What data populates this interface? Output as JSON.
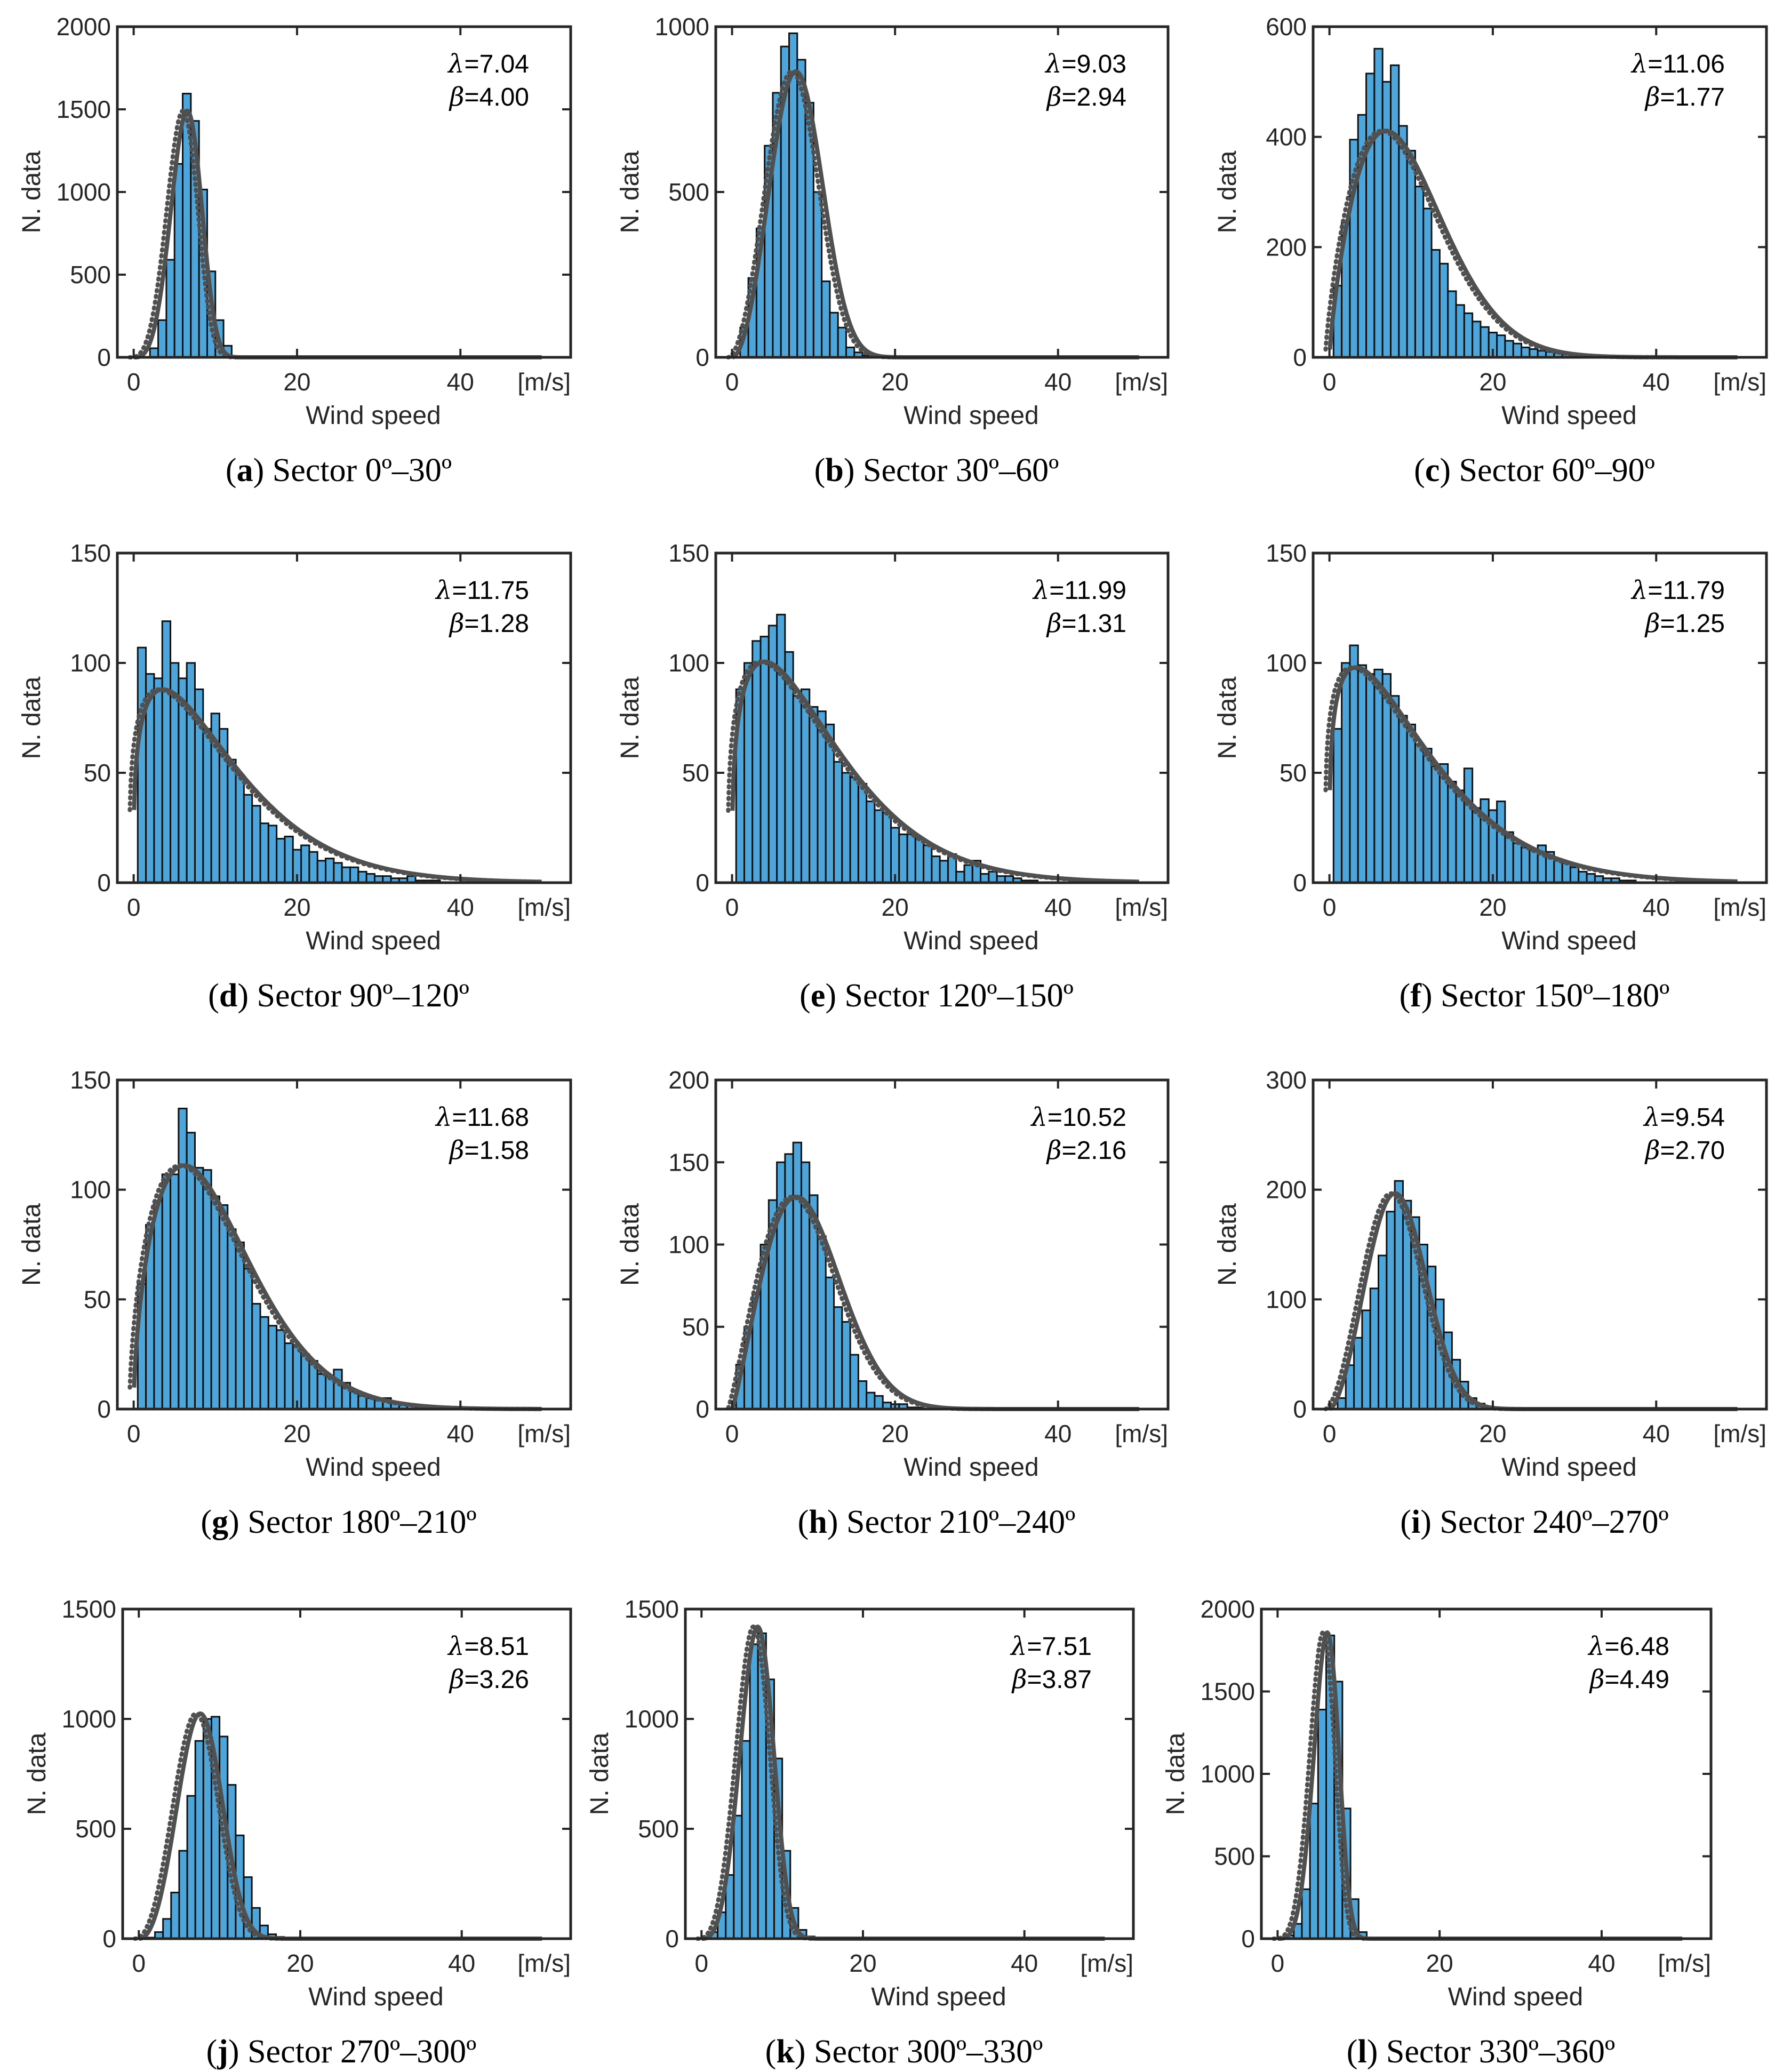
{
  "chart_data": [
    {
      "type": "bar",
      "panel": "a",
      "caption": "Sector 0º–30º",
      "lambda_label": "λ",
      "lambda": "7.04",
      "beta_label": "β",
      "beta": "4.00",
      "xlabel": "Wind speed",
      "xunit": "[m/s]",
      "ylabel": "N. data",
      "xlim": [
        -2,
        53.5
      ],
      "ylim": [
        0,
        2000
      ],
      "xticks": [
        "0",
        "20",
        "40"
      ],
      "yticks": [
        "0",
        "500",
        "1000",
        "1500",
        "2000"
      ],
      "bin_start": 2,
      "bin_width": 1,
      "values": [
        55,
        225,
        590,
        1170,
        1595,
        1430,
        1015,
        520,
        225,
        70
      ]
    },
    {
      "type": "bar",
      "panel": "b",
      "caption": "Sector 30º–60º",
      "lambda_label": "λ",
      "lambda": "9.03",
      "beta_label": "β",
      "beta": "2.94",
      "xlabel": "Wind speed",
      "xunit": "[m/s]",
      "ylabel": "N. data",
      "xlim": [
        -2,
        53.5
      ],
      "ylim": [
        0,
        1000
      ],
      "xticks": [
        "0",
        "20",
        "40"
      ],
      "yticks": [
        "0",
        "500",
        "1000"
      ],
      "bin_start": 1,
      "bin_width": 1,
      "values": [
        90,
        240,
        390,
        640,
        800,
        940,
        980,
        900,
        770,
        500,
        230,
        135,
        90,
        30,
        15,
        6,
        3
      ]
    },
    {
      "type": "bar",
      "panel": "c",
      "caption": "Sector 60º–90º",
      "lambda_label": "λ",
      "lambda": "11.06",
      "beta_label": "β",
      "beta": "1.77",
      "xlabel": "Wind speed",
      "xunit": "[m/s]",
      "ylabel": "N. data",
      "xlim": [
        -2,
        53.5
      ],
      "ylim": [
        0,
        600
      ],
      "xticks": [
        "0",
        "20",
        "40"
      ],
      "yticks": [
        "0",
        "200",
        "400",
        "600"
      ],
      "bin_start": 0.5,
      "bin_width": 1,
      "values": [
        130,
        245,
        395,
        440,
        515,
        560,
        500,
        530,
        420,
        375,
        310,
        270,
        195,
        170,
        120,
        95,
        80,
        65,
        55,
        45,
        40,
        30,
        25,
        18,
        15,
        12,
        10,
        8,
        6,
        5,
        4,
        3,
        2,
        2,
        1,
        1,
        1
      ]
    },
    {
      "type": "bar",
      "panel": "d",
      "caption": "Sector 90º–120º",
      "lambda_label": "λ",
      "lambda": "11.75",
      "beta_label": "β",
      "beta": "1.28",
      "xlabel": "Wind speed",
      "xunit": "[m/s]",
      "ylabel": "N. data",
      "xlim": [
        -2,
        53.5
      ],
      "ylim": [
        0,
        150
      ],
      "xticks": [
        "0",
        "20",
        "40"
      ],
      "yticks": [
        "0",
        "50",
        "100",
        "150"
      ],
      "bin_start": 0.5,
      "bin_width": 1,
      "values": [
        107,
        95,
        93,
        119,
        100,
        93,
        100,
        88,
        70,
        77,
        70,
        56,
        49,
        40,
        35,
        27,
        26,
        20,
        21,
        15,
        17,
        14,
        10,
        11,
        9,
        7,
        7,
        5,
        4,
        3,
        3,
        2,
        2,
        3,
        1,
        1,
        1
      ]
    },
    {
      "type": "bar",
      "panel": "e",
      "caption": "Sector 120º–150º",
      "lambda_label": "λ",
      "lambda": "11.99",
      "beta_label": "β",
      "beta": "1.31",
      "xlabel": "Wind speed",
      "xunit": "[m/s]",
      "ylabel": "N. data",
      "xlim": [
        -2,
        53.5
      ],
      "ylim": [
        0,
        150
      ],
      "xticks": [
        "0",
        "20",
        "40"
      ],
      "yticks": [
        "0",
        "50",
        "100",
        "150"
      ],
      "bin_start": 0.5,
      "bin_width": 1,
      "values": [
        88,
        100,
        110,
        112,
        117,
        122,
        105,
        85,
        88,
        80,
        78,
        72,
        55,
        50,
        48,
        45,
        37,
        33,
        32,
        25,
        22,
        22,
        20,
        17,
        12,
        10,
        13,
        5,
        8,
        10,
        4,
        5,
        3,
        3,
        2,
        1,
        1
      ]
    },
    {
      "type": "bar",
      "panel": "f",
      "caption": "Sector 150º–180º",
      "lambda_label": "λ",
      "lambda": "11.79",
      "beta_label": "β",
      "beta": "1.25",
      "xlabel": "Wind speed",
      "xunit": "[m/s]",
      "ylabel": "N. data",
      "xlim": [
        -2,
        53.5
      ],
      "ylim": [
        0,
        150
      ],
      "xticks": [
        "0",
        "20",
        "40"
      ],
      "yticks": [
        "0",
        "50",
        "100",
        "150"
      ],
      "bin_start": 0.5,
      "bin_width": 1,
      "values": [
        70,
        100,
        108,
        99,
        95,
        97,
        95,
        85,
        76,
        72,
        63,
        61,
        53,
        54,
        46,
        42,
        52,
        34,
        38,
        33,
        37,
        23,
        18,
        16,
        15,
        17,
        14,
        10,
        9,
        7,
        5,
        4,
        3,
        2,
        2,
        1,
        1
      ]
    },
    {
      "type": "bar",
      "panel": "g",
      "caption": "Sector 180º–210º",
      "lambda_label": "λ",
      "lambda": "11.68",
      "beta_label": "β",
      "beta": "1.58",
      "xlabel": "Wind speed",
      "xunit": "[m/s]",
      "ylabel": "N. data",
      "xlim": [
        -2,
        53.5
      ],
      "ylim": [
        0,
        150
      ],
      "xticks": [
        "0",
        "20",
        "40"
      ],
      "yticks": [
        "0",
        "50",
        "100",
        "150"
      ],
      "bin_start": 0.5,
      "bin_width": 1,
      "values": [
        57,
        84,
        95,
        107,
        107,
        137,
        126,
        110,
        109,
        97,
        93,
        82,
        76,
        64,
        48,
        42,
        38,
        36,
        30,
        29,
        25,
        22,
        16,
        15,
        18,
        12,
        8,
        6,
        5,
        4,
        5,
        3,
        2,
        2,
        1,
        1
      ]
    },
    {
      "type": "bar",
      "panel": "h",
      "caption": "Sector 210º–240º",
      "lambda_label": "λ",
      "lambda": "10.52",
      "beta_label": "β",
      "beta": "2.16",
      "xlabel": "Wind speed",
      "xunit": "[m/s]",
      "ylabel": "N. data",
      "xlim": [
        -2,
        53.5
      ],
      "ylim": [
        0,
        200
      ],
      "xticks": [
        "0",
        "20",
        "40"
      ],
      "yticks": [
        "0",
        "50",
        "100",
        "150",
        "200"
      ],
      "bin_start": 0.5,
      "bin_width": 1,
      "values": [
        27,
        50,
        70,
        100,
        127,
        150,
        155,
        162,
        150,
        130,
        105,
        80,
        62,
        53,
        33,
        17,
        10,
        8,
        4,
        3,
        3,
        1,
        1
      ]
    },
    {
      "type": "bar",
      "panel": "i",
      "caption": "Sector 240º–270º",
      "lambda_label": "λ",
      "lambda": "9.54",
      "beta_label": "β",
      "beta": "2.70",
      "xlabel": "Wind speed",
      "xunit": "[m/s]",
      "ylabel": "N. data",
      "xlim": [
        -2,
        53.5
      ],
      "ylim": [
        0,
        300
      ],
      "xticks": [
        "0",
        "20",
        "40"
      ],
      "yticks": [
        "0",
        "100",
        "200",
        "300"
      ],
      "bin_start": 1,
      "bin_width": 1,
      "values": [
        10,
        40,
        65,
        90,
        110,
        140,
        180,
        208,
        190,
        175,
        150,
        130,
        100,
        70,
        45,
        25,
        10,
        5,
        2
      ]
    },
    {
      "type": "bar",
      "panel": "j",
      "caption": "Sector 270º–300º",
      "lambda_label": "λ",
      "lambda": "8.51",
      "beta_label": "β",
      "beta": "3.26",
      "xlabel": "Wind speed",
      "xunit": "[m/s]",
      "ylabel": "N. data",
      "xlim": [
        -2,
        53.5
      ],
      "ylim": [
        0,
        1500
      ],
      "xticks": [
        "0",
        "20",
        "40"
      ],
      "yticks": [
        "0",
        "500",
        "1000",
        "1500"
      ],
      "bin_start": 1,
      "bin_width": 1,
      "values": [
        5,
        30,
        90,
        210,
        400,
        650,
        900,
        1000,
        1010,
        920,
        700,
        470,
        280,
        140,
        60,
        20,
        8,
        3
      ]
    },
    {
      "type": "bar",
      "panel": "k",
      "caption": "Sector 300º–330º",
      "lambda_label": "λ",
      "lambda": "7.51",
      "beta_label": "β",
      "beta": "3.87",
      "xlabel": "Wind speed",
      "xunit": "[m/s]",
      "ylabel": "N. data",
      "xlim": [
        -2,
        53.5
      ],
      "ylim": [
        0,
        1500
      ],
      "xticks": [
        "0",
        "20",
        "40"
      ],
      "yticks": [
        "0",
        "500",
        "1000",
        "1500"
      ],
      "bin_start": 1,
      "bin_width": 1,
      "values": [
        30,
        120,
        290,
        560,
        900,
        1340,
        1390,
        1180,
        820,
        400,
        140,
        40,
        10
      ]
    },
    {
      "type": "bar",
      "panel": "l",
      "caption": "Sector 330º–360º",
      "lambda_label": "λ",
      "lambda": "6.48",
      "beta_label": "β",
      "beta": "4.49",
      "xlabel": "Wind speed",
      "xunit": "[m/s]",
      "ylabel": "N. data",
      "xlim": [
        -2,
        53.5
      ],
      "ylim": [
        0,
        2000
      ],
      "xticks": [
        "0",
        "20",
        "40"
      ],
      "yticks": [
        "0",
        "500",
        "1000",
        "1500",
        "2000"
      ],
      "bin_start": 1,
      "bin_width": 1,
      "values": [
        20,
        90,
        300,
        820,
        1390,
        1840,
        1560,
        790,
        240,
        40,
        5
      ]
    }
  ],
  "colors": {
    "bar": "#4EA5D9",
    "bar_edge": "#111111",
    "fit": "#505050",
    "axis": "#262626"
  }
}
